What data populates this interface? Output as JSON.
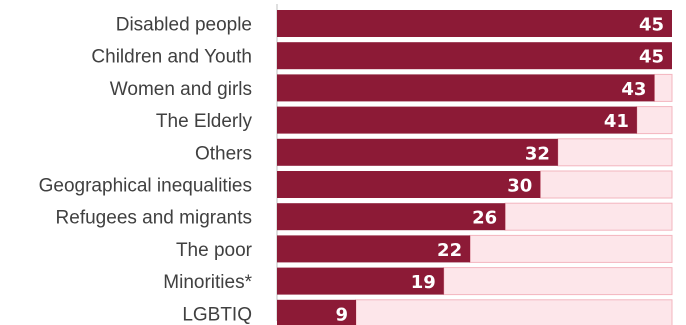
{
  "chart_data": {
    "type": "bar",
    "orientation": "horizontal",
    "stacked_with_remainder": true,
    "categories": [
      "Disabled people",
      "Children and Youth",
      "Women and girls",
      "The Elderly",
      "Others",
      "Geographical inequalities",
      "Refugees and migrants",
      "The poor ",
      "Minorities*",
      "LGBTIQ"
    ],
    "series": [
      {
        "values": [
          45,
          45,
          43,
          41,
          32,
          30,
          26,
          22,
          19,
          9
        ]
      }
    ],
    "xlim": [
      0,
      45
    ],
    "title": "",
    "xlabel": "",
    "ylabel": "",
    "grid": false,
    "legend": "none",
    "colors": {
      "bar": "#8c1a36",
      "remainder": "#fde6ea",
      "remainder_border": "#f3b5bf",
      "value_text": "#ffffff",
      "label_text": "#404040"
    }
  }
}
